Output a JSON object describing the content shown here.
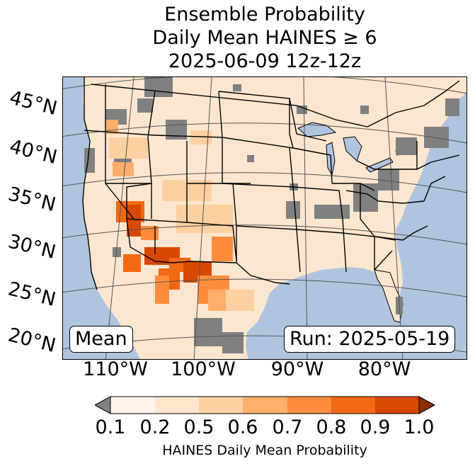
{
  "title": {
    "line1": "Ensemble Probability",
    "line2": "Daily Mean HAINES ≥ 6",
    "line3": "2025-06-09 12z-12z"
  },
  "map": {
    "lat_labels": [
      "45°N",
      "40°N",
      "35°N",
      "30°N",
      "25°N",
      "20°N"
    ],
    "lon_labels": [
      "110°W",
      "100°W",
      "90°W",
      "80°W"
    ],
    "ocean_color": "#b0c4de",
    "land_color": "#fde6cf",
    "missing_color": "#808080",
    "mean_label": "Mean",
    "run_label": "Run: 2025-05-19"
  },
  "colorbar": {
    "label": "HAINES Daily Mean Probability",
    "ticks": [
      "0.1",
      "0.2",
      "0.5",
      "0.6",
      "0.7",
      "0.8",
      "0.9",
      "1.0"
    ],
    "under_color": "#808080",
    "colors": [
      "#fff5eb",
      "#fee6ce",
      "#fdd0a2",
      "#fdae6b",
      "#fd8d3c",
      "#f16913",
      "#d94801"
    ],
    "over_color": "#8c2d04"
  }
}
